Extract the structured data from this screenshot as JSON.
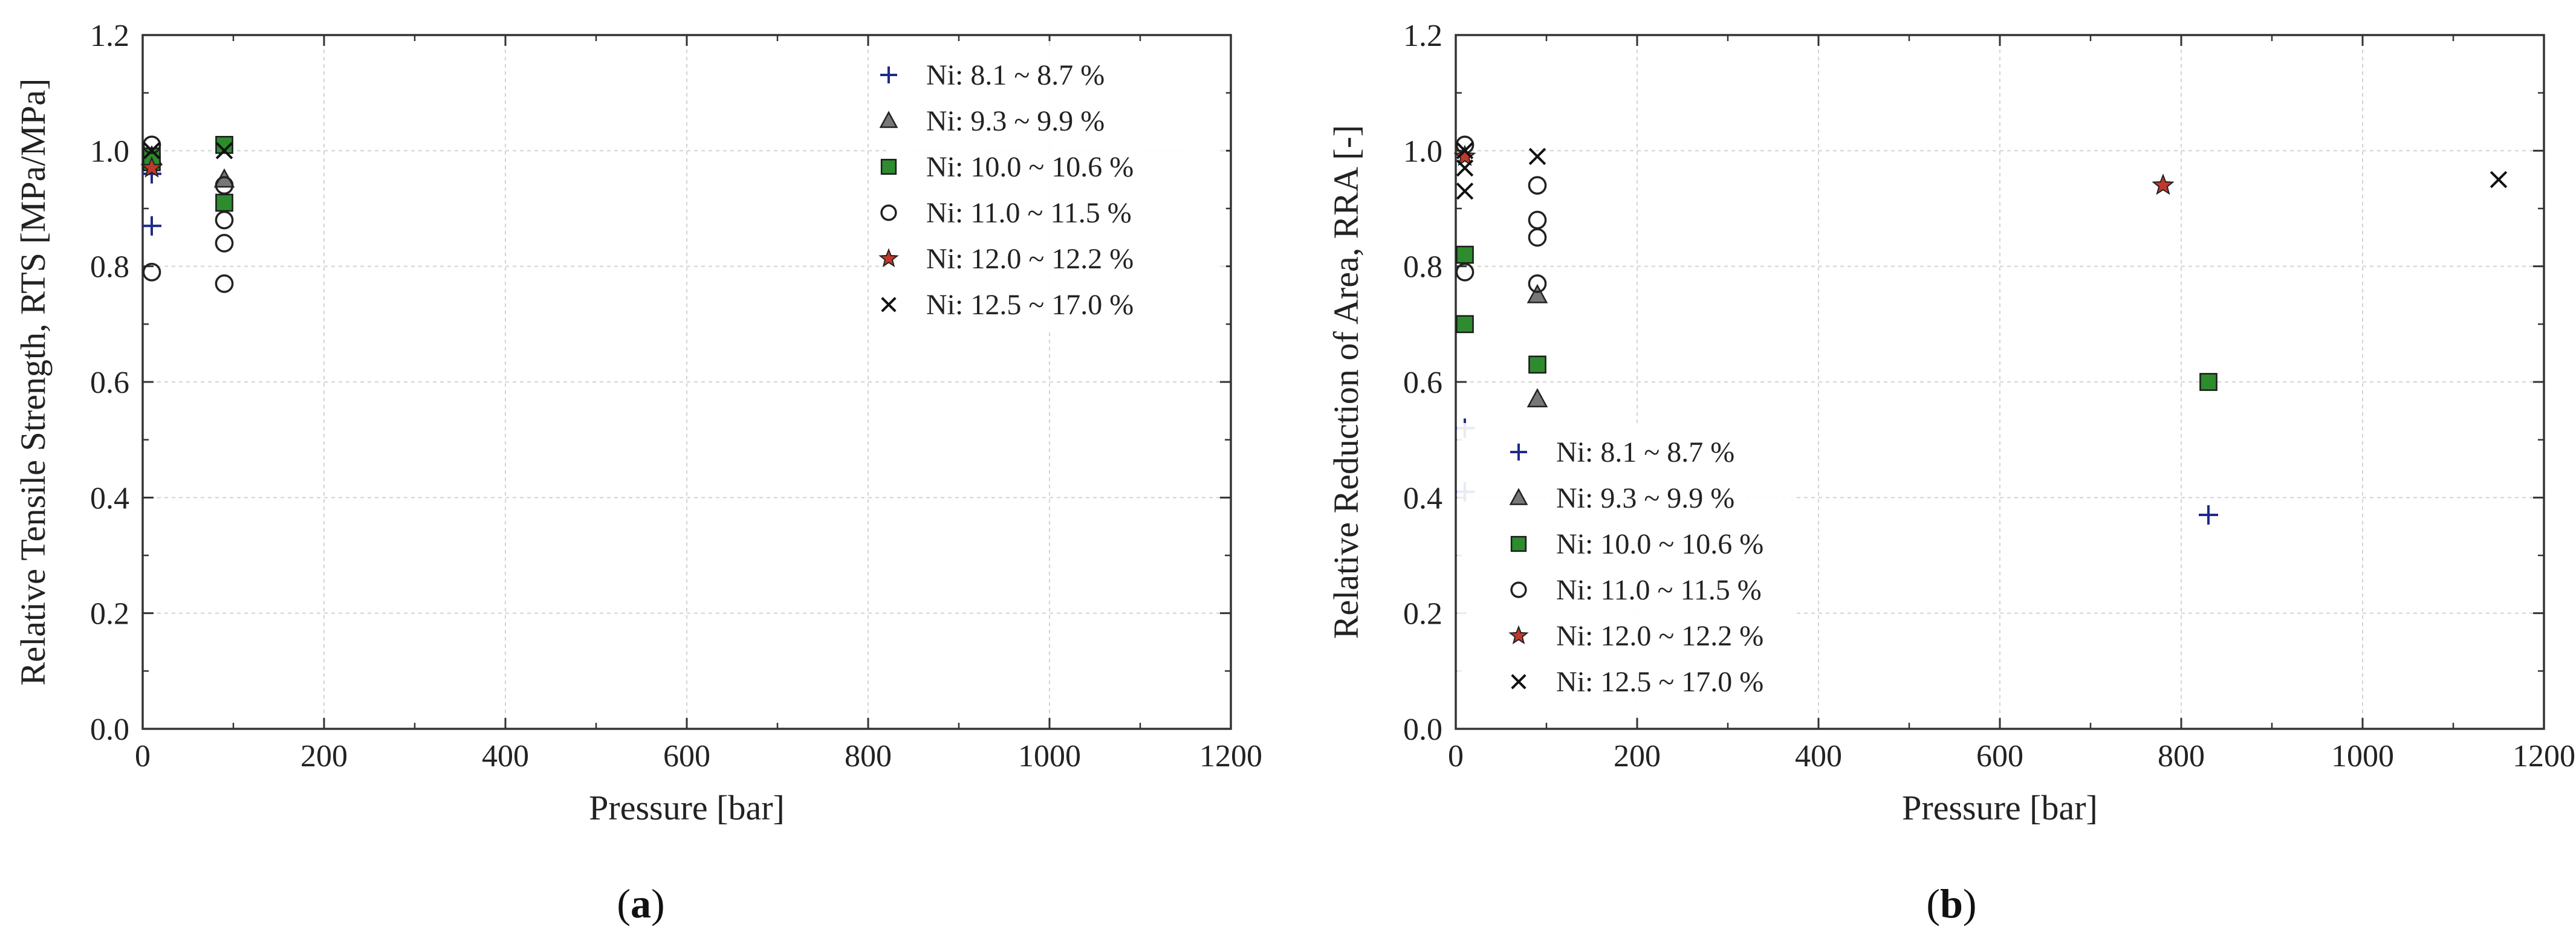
{
  "chart_data": [
    {
      "type": "scatter",
      "panel_label": "a",
      "xlabel": "Pressure [bar]",
      "ylabel": "Relative Tensile Strength, RTS [MPa/MPa]",
      "xlim": [
        0,
        1200
      ],
      "ylim": [
        0,
        1.2
      ],
      "xticks": [
        0,
        200,
        400,
        600,
        800,
        1000,
        1200
      ],
      "xtick_labels": [
        "0",
        "200",
        "400",
        "600",
        "800",
        "1000",
        "1200"
      ],
      "yticks": [
        0,
        0.2,
        0.4,
        0.6,
        0.8,
        1.0,
        1.2
      ],
      "ytick_labels": [
        "0.0",
        "0.2",
        "0.4",
        "0.6",
        "0.8",
        "1.0",
        "1.2"
      ],
      "grid": true,
      "legend_position": "top-right",
      "series": [
        {
          "name": "Ni: 8.1 ~ 8.7 %",
          "marker": "plus",
          "color": "#1f2a8a",
          "points": [
            [
              10,
              0.87
            ],
            [
              10,
              0.96
            ]
          ]
        },
        {
          "name": "Ni: 9.3 ~ 9.9 %",
          "marker": "triangle",
          "color": "#777777",
          "points": [
            [
              10,
              0.99
            ],
            [
              90,
              0.95
            ]
          ]
        },
        {
          "name": "Ni: 10.0 ~ 10.6 %",
          "marker": "square",
          "color": "#2e8b2e",
          "points": [
            [
              10,
              0.98
            ],
            [
              10,
              0.99
            ],
            [
              90,
              1.01
            ],
            [
              90,
              0.91
            ]
          ]
        },
        {
          "name": "Ni: 11.0 ~ 11.5 %",
          "marker": "circle",
          "color": "#222222",
          "points": [
            [
              10,
              1.01
            ],
            [
              10,
              0.79
            ],
            [
              90,
              0.94
            ],
            [
              90,
              0.88
            ],
            [
              90,
              0.84
            ],
            [
              90,
              0.77
            ]
          ]
        },
        {
          "name": "Ni: 12.0 ~ 12.2 %",
          "marker": "star",
          "color": "#c0392b",
          "points": [
            [
              10,
              0.97
            ]
          ]
        },
        {
          "name": "Ni: 12.5 ~ 17.0 %",
          "marker": "cross",
          "color": "#111111",
          "points": [
            [
              10,
              1.0
            ],
            [
              90,
              1.0
            ]
          ]
        }
      ]
    },
    {
      "type": "scatter",
      "panel_label": "b",
      "xlabel": "Pressure [bar]",
      "ylabel": "Relative Reduction of Area, RRA [-]",
      "xlim": [
        0,
        1200
      ],
      "ylim": [
        0,
        1.2
      ],
      "xticks": [
        0,
        200,
        400,
        600,
        800,
        1000,
        1200
      ],
      "xtick_labels": [
        "0",
        "200",
        "400",
        "600",
        "800",
        "1000",
        "1200"
      ],
      "yticks": [
        0,
        0.2,
        0.4,
        0.6,
        0.8,
        1.0,
        1.2
      ],
      "ytick_labels": [
        "0.0",
        "0.2",
        "0.4",
        "0.6",
        "0.8",
        "1.0",
        "1.2"
      ],
      "grid": true,
      "legend_position": "bottom-left",
      "series": [
        {
          "name": "Ni: 8.1 ~ 8.7 %",
          "marker": "plus",
          "color": "#1f2a8a",
          "points": [
            [
              10,
              0.52
            ],
            [
              10,
              0.41
            ],
            [
              830,
              0.37
            ]
          ]
        },
        {
          "name": "Ni: 9.3 ~ 9.9 %",
          "marker": "triangle",
          "color": "#777777",
          "points": [
            [
              90,
              0.75
            ],
            [
              90,
              0.57
            ]
          ]
        },
        {
          "name": "Ni: 10.0 ~ 10.6 %",
          "marker": "square",
          "color": "#2e8b2e",
          "points": [
            [
              10,
              0.82
            ],
            [
              10,
              0.7
            ],
            [
              90,
              0.63
            ],
            [
              830,
              0.6
            ]
          ]
        },
        {
          "name": "Ni: 11.0 ~ 11.5 %",
          "marker": "circle",
          "color": "#222222",
          "points": [
            [
              10,
              1.01
            ],
            [
              10,
              0.79
            ],
            [
              90,
              0.94
            ],
            [
              90,
              0.88
            ],
            [
              90,
              0.85
            ],
            [
              90,
              0.77
            ]
          ]
        },
        {
          "name": "Ni: 12.0 ~ 12.2 %",
          "marker": "star",
          "color": "#c0392b",
          "points": [
            [
              10,
              0.99
            ],
            [
              780,
              0.94
            ]
          ]
        },
        {
          "name": "Ni: 12.5 ~ 17.0 %",
          "marker": "cross",
          "color": "#111111",
          "points": [
            [
              10,
              1.0
            ],
            [
              10,
              0.97
            ],
            [
              10,
              0.93
            ],
            [
              90,
              0.99
            ],
            [
              1150,
              0.95
            ]
          ]
        }
      ]
    }
  ]
}
